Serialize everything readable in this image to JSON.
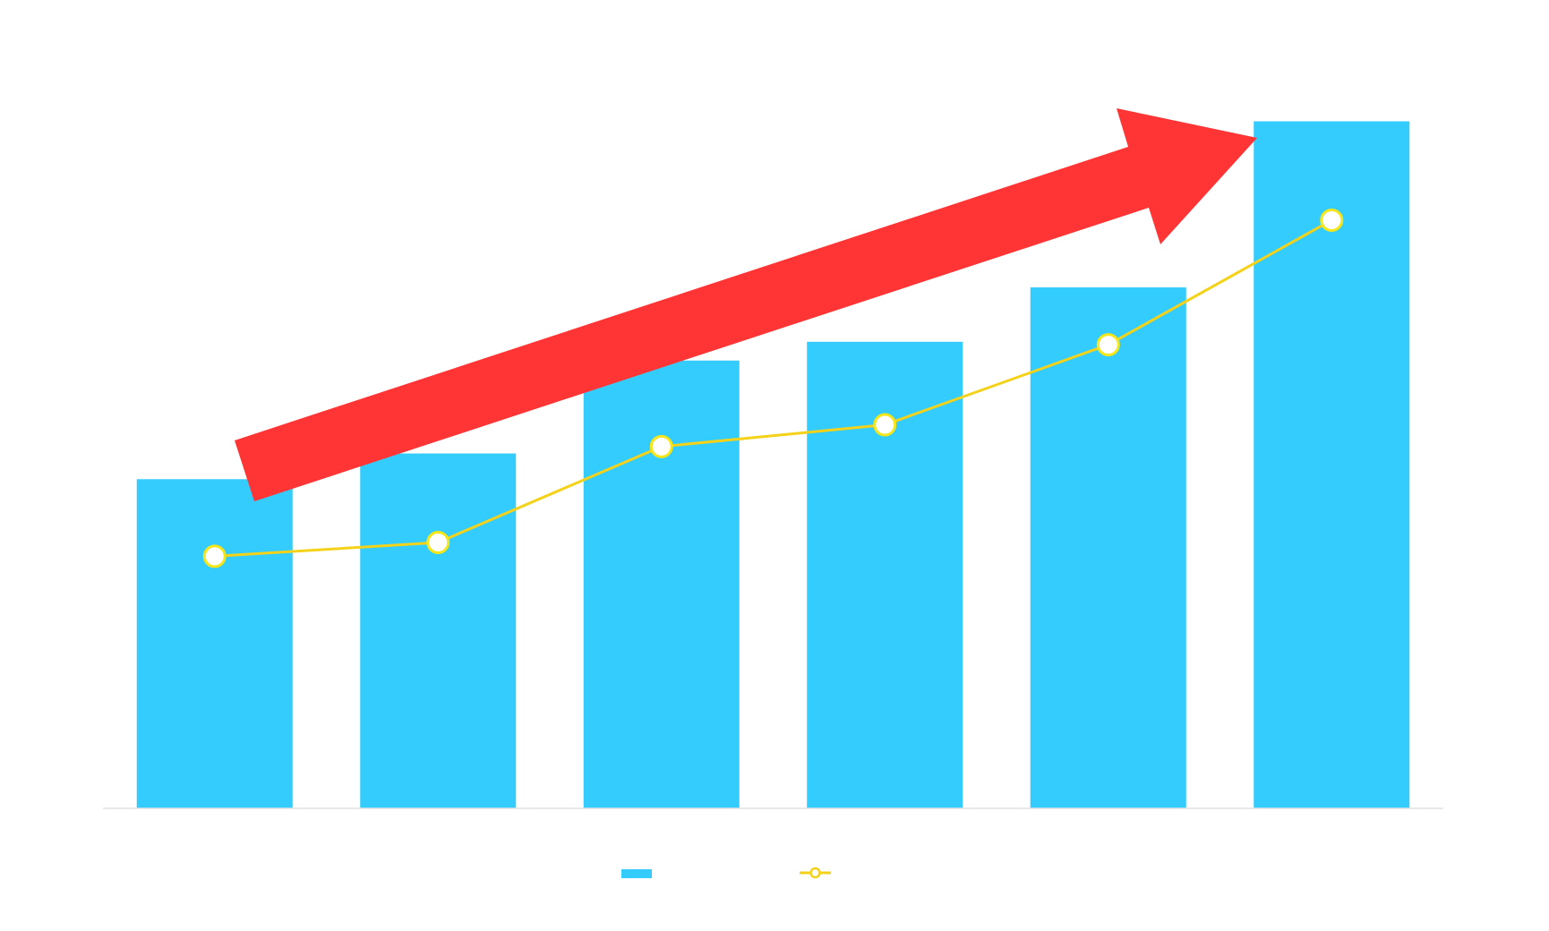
{
  "chart_data": {
    "type": "bar",
    "title": "",
    "xlabel": "",
    "ylabel": "",
    "categories": [
      "",
      "",
      "",
      "",
      "",
      ""
    ],
    "ylim": [
      0,
      700
    ],
    "grid": false,
    "legend_position": "bottom",
    "series": [
      {
        "type": "bar",
        "name": "",
        "color": "#33CCFC",
        "values": [
          333,
          359,
          453,
          472,
          527,
          695
        ]
      },
      {
        "type": "line",
        "name": "",
        "color": "#F5D21A",
        "marker_fill": "#FFFFFF",
        "marker_stroke": "#F5E61A",
        "values": [
          255,
          269,
          366,
          388,
          469,
          595
        ]
      }
    ],
    "annotations": [
      {
        "type": "trend-arrow",
        "direction": "up",
        "color": "#FF3535"
      }
    ]
  }
}
